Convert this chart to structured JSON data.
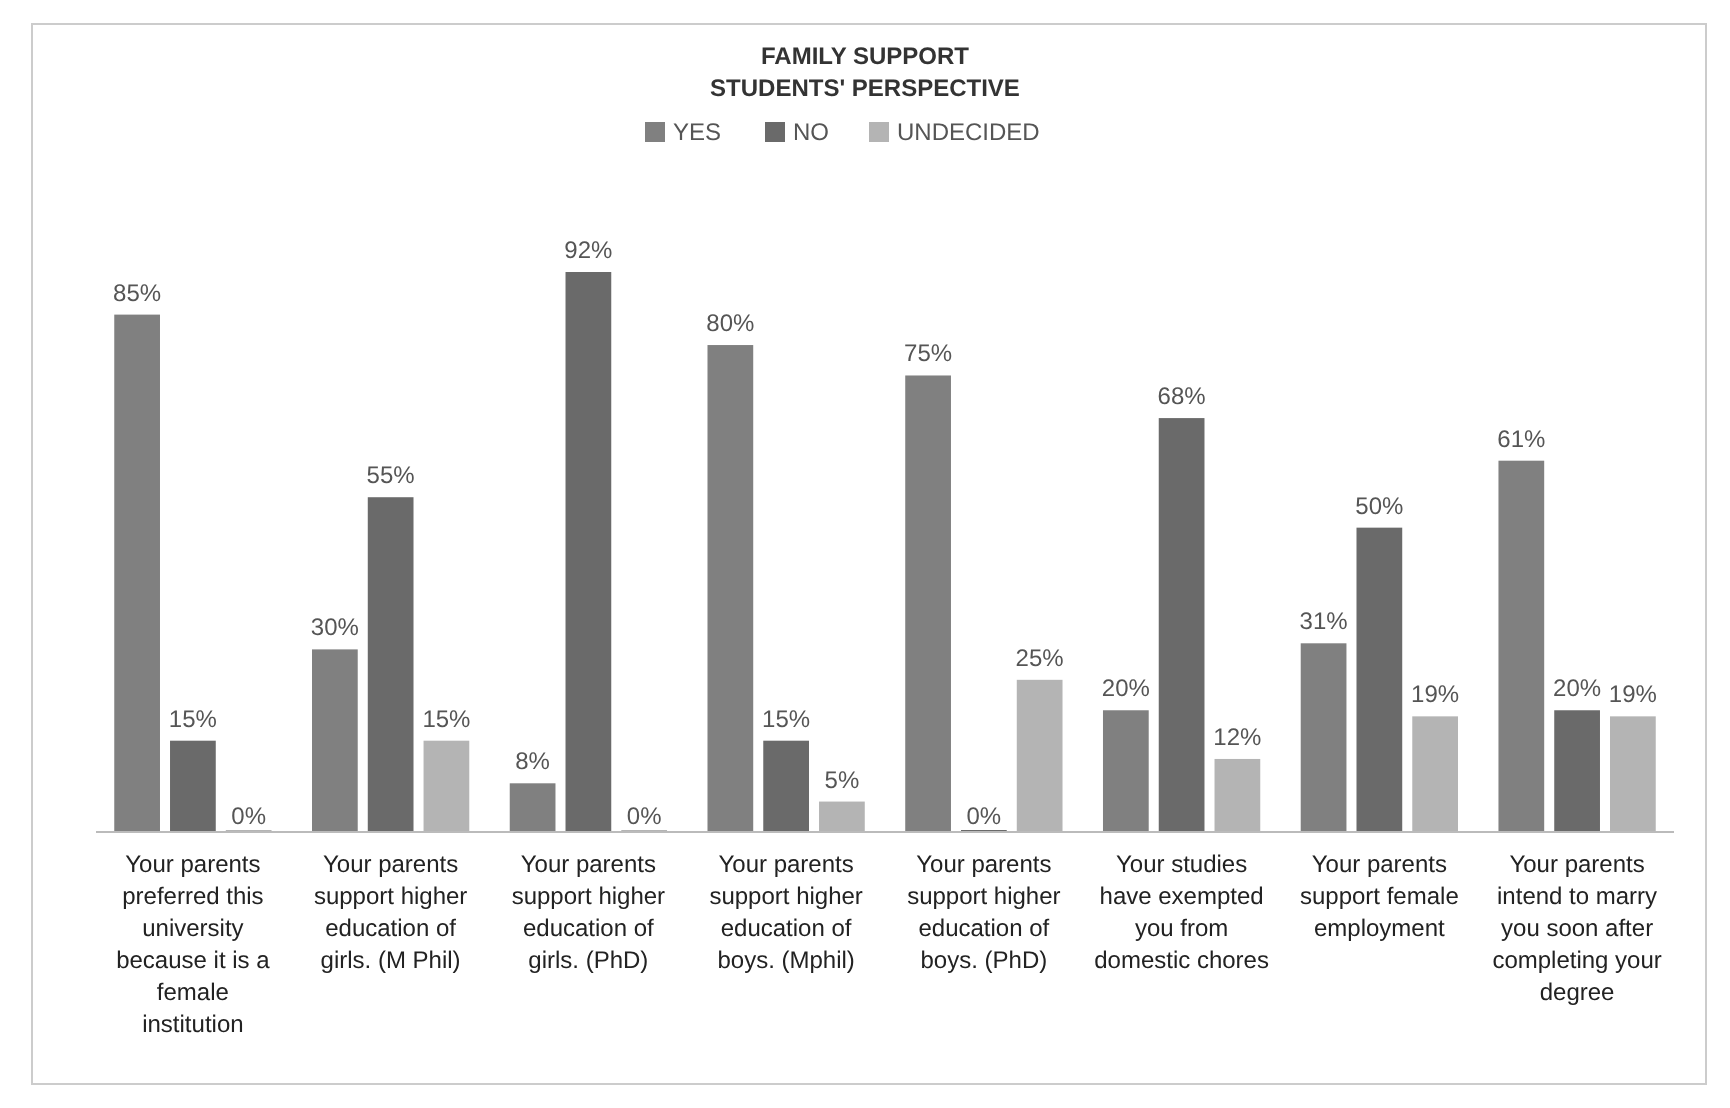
{
  "chart_data": {
    "type": "bar",
    "title": "FAMILY SUPPORT",
    "subtitle": "STUDENTS' PERSPECTIVE",
    "categories": [
      "Your parents preferred this university because it is a female institution",
      "Your parents support higher education of girls. (M Phil)",
      "Your parents support higher education of girls. (PhD)",
      "Your parents support higher education of boys. (Mphil)",
      "Your parents support higher education of boys. (PhD)",
      "Your studies have exempted you from domestic chores",
      "Your parents support female employment",
      "Your parents intend to marry you soon after completing your degree"
    ],
    "series": [
      {
        "name": "YES",
        "color": "#808080",
        "values": [
          85,
          30,
          8,
          80,
          75,
          20,
          31,
          61
        ],
        "value_labels": [
          "85%",
          "30%",
          "8%",
          "80%",
          "75%",
          "20%",
          "31%",
          "61%"
        ]
      },
      {
        "name": "NO",
        "color": "#6a6a6a",
        "values": [
          15,
          55,
          92,
          15,
          0,
          68,
          50,
          20
        ],
        "value_labels": [
          "15%",
          "55%",
          "92%",
          "15%",
          "0%",
          "68%",
          "50%",
          "20%"
        ]
      },
      {
        "name": "UNDECIDED",
        "color": "#b4b4b4",
        "values": [
          0,
          15,
          0,
          5,
          25,
          12,
          19,
          19
        ],
        "value_labels": [
          "0%",
          "15%",
          "0%",
          "5%",
          "25%",
          "12%",
          "19%",
          "19%"
        ]
      }
    ],
    "tick_labels": "x",
    "legend": "top"
  }
}
